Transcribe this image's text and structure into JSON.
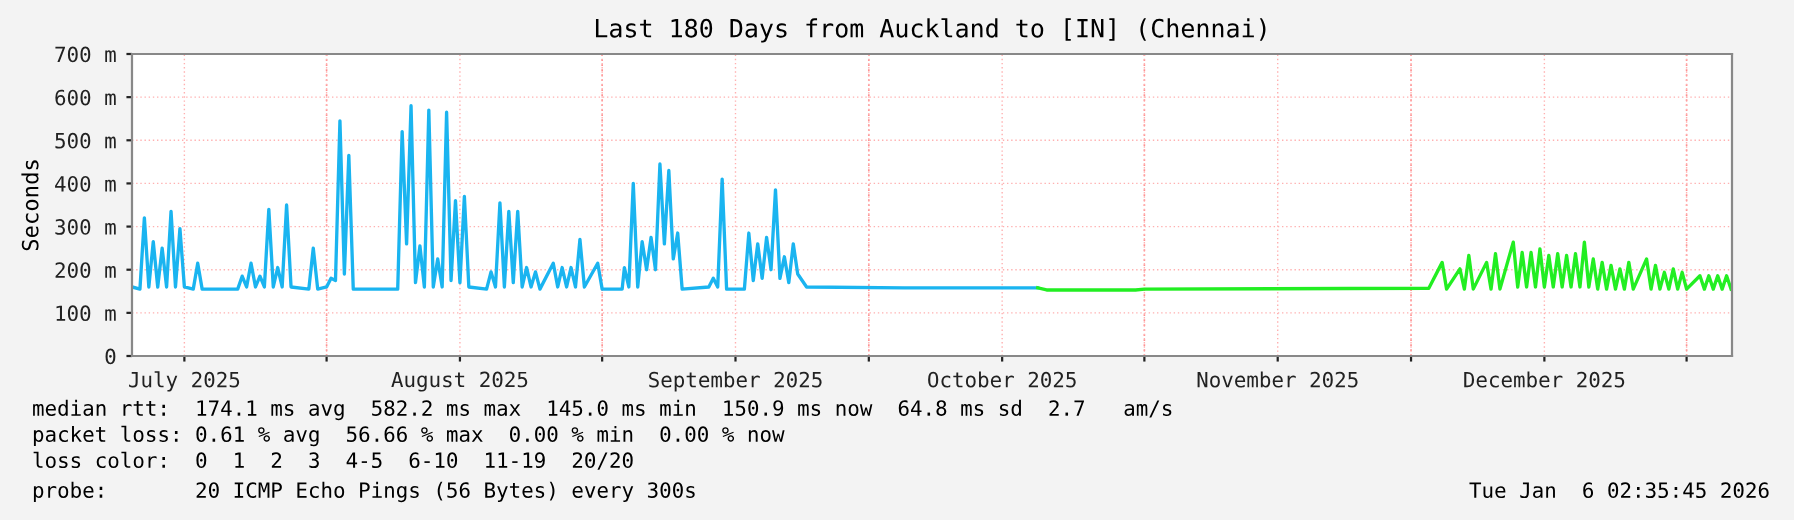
{
  "chart_data": {
    "type": "line",
    "title": "Last 180 Days from Auckland to [IN] (Chennai)",
    "ylabel": "Seconds",
    "xlim": [
      "2025-07-10T02:35",
      "2026-01-06T02:35"
    ],
    "xticks": [
      {
        "value": "2025-07-16",
        "label": "July 2025"
      },
      {
        "value": "2025-08-01",
        "label": null
      },
      {
        "value": "2025-08-16",
        "label": "August 2025"
      },
      {
        "value": "2025-09-01",
        "label": null
      },
      {
        "value": "2025-09-16",
        "label": "September 2025"
      },
      {
        "value": "2025-10-01",
        "label": null
      },
      {
        "value": "2025-10-16",
        "label": "October 2025"
      },
      {
        "value": "2025-11-01",
        "label": null
      },
      {
        "value": "2025-11-16",
        "label": "November 2025"
      },
      {
        "value": "2025-12-01",
        "label": null
      },
      {
        "value": "2025-12-16",
        "label": "December 2025"
      },
      {
        "value": "2026-01-01",
        "label": null
      }
    ],
    "ylim": [
      0,
      700
    ],
    "yticks": [
      0,
      {
        "value": 100,
        "label": "100 m"
      },
      {
        "value": 200,
        "label": "200 m"
      },
      {
        "value": 300,
        "label": "300 m"
      },
      {
        "value": 400,
        "label": "400 m"
      },
      {
        "value": 500,
        "label": "500 m"
      },
      {
        "value": 600,
        "label": "600 m"
      },
      {
        "value": 700,
        "label": "700 m"
      }
    ],
    "grid": true,
    "line_style": "solid",
    "marker": "none",
    "series": [
      {
        "color": "#1ab4f0",
        "x": [
          "2025-07-10T03:00",
          "2025-07-11",
          "2025-07-11T12:00",
          "2025-07-12",
          "2025-07-12T12:00",
          "2025-07-13",
          "2025-07-13T12:00",
          "2025-07-14",
          "2025-07-14T12:00",
          "2025-07-15",
          "2025-07-15T12:00",
          "2025-07-16",
          "2025-07-17",
          "2025-07-17T12:00",
          "2025-07-18",
          "2025-07-22",
          "2025-07-22T12:00",
          "2025-07-23",
          "2025-07-23T12:00",
          "2025-07-24",
          "2025-07-24T12:00",
          "2025-07-25",
          "2025-07-25T12:00",
          "2025-07-26",
          "2025-07-26T12:00",
          "2025-07-27",
          "2025-07-27T12:00",
          "2025-07-28",
          "2025-07-30",
          "2025-07-30T12:00",
          "2025-07-31",
          "2025-08-01",
          "2025-08-01T12:00",
          "2025-08-02",
          "2025-08-02T12:00",
          "2025-08-03",
          "2025-08-03T12:00",
          "2025-08-04",
          "2025-08-09",
          "2025-08-09T12:00",
          "2025-08-10",
          "2025-08-10T12:00",
          "2025-08-11",
          "2025-08-11T12:00",
          "2025-08-12",
          "2025-08-12T12:00",
          "2025-08-13",
          "2025-08-13T12:00",
          "2025-08-14",
          "2025-08-14T12:00",
          "2025-08-15",
          "2025-08-15T12:00",
          "2025-08-16",
          "2025-08-16T12:00",
          "2025-08-17",
          "2025-08-19",
          "2025-08-19T12:00",
          "2025-08-20",
          "2025-08-20T12:00",
          "2025-08-21",
          "2025-08-21T12:00",
          "2025-08-22",
          "2025-08-22T12:00",
          "2025-08-23",
          "2025-08-23T12:00",
          "2025-08-24",
          "2025-08-24T12:00",
          "2025-08-25",
          "2025-08-26T12:00",
          "2025-08-27",
          "2025-08-27T12:00",
          "2025-08-28",
          "2025-08-28T12:00",
          "2025-08-29",
          "2025-08-29T12:00",
          "2025-08-30",
          "2025-08-31T12:00",
          "2025-09-01",
          "2025-09-03T06:00",
          "2025-09-03T12:00",
          "2025-09-04",
          "2025-09-04T12:00",
          "2025-09-05",
          "2025-09-05T12:00",
          "2025-09-06",
          "2025-09-06T12:00",
          "2025-09-07",
          "2025-09-07T12:00",
          "2025-09-08",
          "2025-09-08T12:00",
          "2025-09-09",
          "2025-09-09T12:00",
          "2025-09-10",
          "2025-09-13",
          "2025-09-13T12:00",
          "2025-09-14",
          "2025-09-14T12:00",
          "2025-09-15",
          "2025-09-17",
          "2025-09-17T12:00",
          "2025-09-18",
          "2025-09-18T12:00",
          "2025-09-19",
          "2025-09-19T12:00",
          "2025-09-20",
          "2025-09-20T12:00",
          "2025-09-21",
          "2025-09-21T12:00",
          "2025-09-22",
          "2025-09-22T12:00",
          "2025-09-23",
          "2025-09-24",
          "2025-10-05",
          "2025-10-20"
        ],
        "values": [
          160,
          155,
          320,
          160,
          265,
          160,
          250,
          160,
          335,
          160,
          295,
          160,
          155,
          215,
          155,
          155,
          185,
          160,
          215,
          160,
          185,
          160,
          340,
          160,
          205,
          160,
          350,
          160,
          155,
          250,
          155,
          160,
          180,
          175,
          545,
          190,
          465,
          155,
          155,
          520,
          260,
          580,
          170,
          255,
          160,
          570,
          160,
          225,
          160,
          565,
          175,
          360,
          170,
          370,
          160,
          155,
          195,
          160,
          355,
          160,
          335,
          170,
          335,
          160,
          205,
          160,
          195,
          155,
          215,
          160,
          205,
          160,
          205,
          160,
          270,
          160,
          215,
          155,
          155,
          205,
          160,
          400,
          160,
          265,
          200,
          275,
          200,
          445,
          260,
          430,
          225,
          285,
          155,
          160,
          180,
          160,
          410,
          155,
          155,
          285,
          175,
          260,
          180,
          275,
          200,
          385,
          180,
          230,
          170,
          260,
          190,
          160,
          158,
          158
        ]
      },
      {
        "color": "#22ee22",
        "x": [
          "2025-10-20",
          "2025-10-21",
          "2025-10-31",
          "2025-11-01",
          "2025-12-03",
          "2025-12-04T12:00",
          "2025-12-05",
          "2025-12-06T12:00",
          "2025-12-07",
          "2025-12-07T12:00",
          "2025-12-08",
          "2025-12-09T12:00",
          "2025-12-10",
          "2025-12-10T12:00",
          "2025-12-11",
          "2025-12-12T12:00",
          "2025-12-13",
          "2025-12-13T12:00",
          "2025-12-14",
          "2025-12-14T12:00",
          "2025-12-15",
          "2025-12-15T12:00",
          "2025-12-16",
          "2025-12-16T12:00",
          "2025-12-17",
          "2025-12-17T12:00",
          "2025-12-18",
          "2025-12-18T12:00",
          "2025-12-19",
          "2025-12-19T12:00",
          "2025-12-20",
          "2025-12-20T12:00",
          "2025-12-21",
          "2025-12-21T12:00",
          "2025-12-22",
          "2025-12-22T12:00",
          "2025-12-23",
          "2025-12-23T12:00",
          "2025-12-24",
          "2025-12-24T12:00",
          "2025-12-25",
          "2025-12-25T12:00",
          "2025-12-26",
          "2025-12-27T12:00",
          "2025-12-28",
          "2025-12-28T12:00",
          "2025-12-29",
          "2025-12-29T12:00",
          "2025-12-30",
          "2025-12-30T12:00",
          "2025-12-31",
          "2025-12-31T12:00",
          "2026-01-01",
          "2026-01-02T12:00",
          "2026-01-03",
          "2026-01-03T12:00",
          "2026-01-04",
          "2026-01-04T12:00",
          "2026-01-05",
          "2026-01-05T12:00",
          "2026-01-06"
        ],
        "values": [
          158,
          153,
          153,
          155,
          157,
          217,
          155,
          202,
          155,
          233,
          155,
          217,
          155,
          237,
          155,
          264,
          160,
          240,
          160,
          240,
          160,
          248,
          160,
          233,
          160,
          237,
          160,
          233,
          160,
          237,
          160,
          264,
          160,
          225,
          155,
          217,
          155,
          210,
          155,
          202,
          155,
          217,
          155,
          225,
          155,
          210,
          155,
          194,
          155,
          202,
          155,
          194,
          155,
          186,
          155,
          186,
          155,
          186,
          155,
          186,
          155
        ]
      }
    ],
    "annotations": [
      "median rtt:  174.1 ms avg  582.2 ms max  145.0 ms min  150.9 ms now  64.8 ms sd  2.7   am/s",
      "packet loss: 0.61 % avg  56.66 % max  0.00 % min  0.00 % now",
      "loss color:  0  1  2  3  4-5  6-10  11-19  20/20",
      "probe:       20 ICMP Echo Pings (56 Bytes) every 300s",
      "Tue Jan  6 02:35:45 2026"
    ]
  }
}
